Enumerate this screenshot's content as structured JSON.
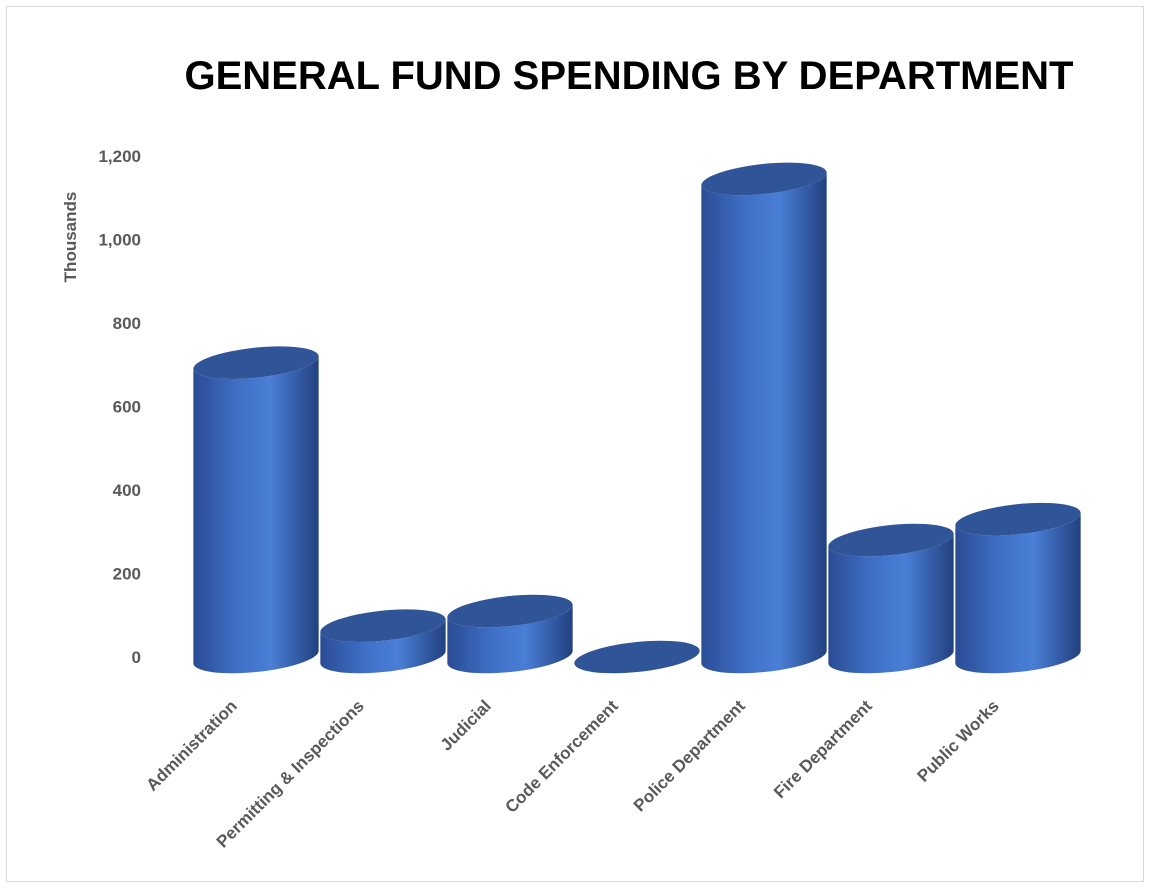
{
  "chart_data": {
    "type": "bar",
    "style": "3d-cylinder",
    "title": "GENERAL FUND SPENDING BY DEPARTMENT",
    "xlabel": "",
    "ylabel": "Thousands",
    "categories": [
      "Administration",
      "Permitting & Inspections",
      "Judicial",
      "Code Enforcement",
      "Police Department",
      "Fire Department",
      "Public Works"
    ],
    "values": [
      705,
      75,
      110,
      0,
      1145,
      280,
      330
    ],
    "ylim": [
      0,
      1200
    ],
    "yticks": [
      "0",
      "200",
      "400",
      "600",
      "800",
      "1,000",
      "1,200"
    ],
    "grid": false,
    "legend": "none",
    "colors": {
      "bar_light": "#4a7fd6",
      "bar_mid": "#3f6fc6",
      "bar_dark": "#25448a",
      "top": "#2f5498",
      "text": "#595959"
    }
  }
}
